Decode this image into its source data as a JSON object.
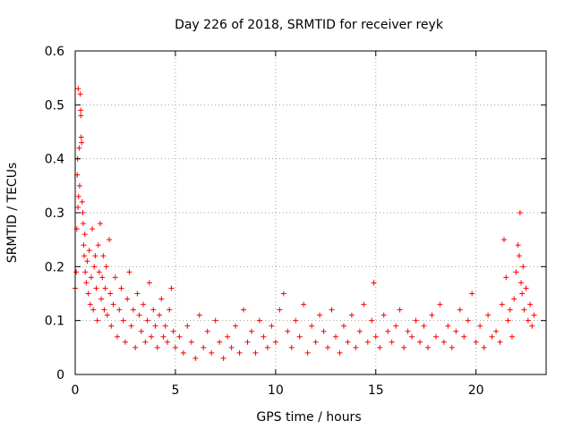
{
  "chart_data": {
    "type": "scatter",
    "title": "Day 226 of 2018, SRMTID for receiver reyk",
    "xlabel": "GPS time / hours",
    "ylabel": "SRMTID / TECUs",
    "xlim": [
      0,
      23.5
    ],
    "ylim": [
      0,
      0.6
    ],
    "xticks": [
      0,
      5,
      10,
      15,
      20
    ],
    "xtick_labels": [
      "0",
      "5",
      "10",
      "15",
      "20"
    ],
    "yticks": [
      0,
      0.1,
      0.2,
      0.3,
      0.4,
      0.5,
      0.6
    ],
    "ytick_labels": [
      "0",
      "0.1",
      "0.2",
      "0.3",
      "0.4",
      "0.5",
      "0.6"
    ],
    "grid": true,
    "marker": "plus",
    "color": "#ff0000",
    "series": [
      {
        "name": "SRMTID",
        "points": [
          [
            0.0,
            0.16
          ],
          [
            0.05,
            0.19
          ],
          [
            0.08,
            0.27
          ],
          [
            0.1,
            0.37
          ],
          [
            0.12,
            0.4
          ],
          [
            0.14,
            0.31
          ],
          [
            0.15,
            0.53
          ],
          [
            0.17,
            0.33
          ],
          [
            0.2,
            0.42
          ],
          [
            0.22,
            0.35
          ],
          [
            0.25,
            0.52
          ],
          [
            0.27,
            0.49
          ],
          [
            0.28,
            0.48
          ],
          [
            0.3,
            0.44
          ],
          [
            0.32,
            0.43
          ],
          [
            0.35,
            0.32
          ],
          [
            0.38,
            0.3
          ],
          [
            0.4,
            0.28
          ],
          [
            0.42,
            0.24
          ],
          [
            0.45,
            0.22
          ],
          [
            0.48,
            0.26
          ],
          [
            0.5,
            0.19
          ],
          [
            0.55,
            0.17
          ],
          [
            0.6,
            0.21
          ],
          [
            0.65,
            0.15
          ],
          [
            0.7,
            0.23
          ],
          [
            0.75,
            0.13
          ],
          [
            0.8,
            0.18
          ],
          [
            0.85,
            0.27
          ],
          [
            0.9,
            0.12
          ],
          [
            0.95,
            0.2
          ],
          [
            1.0,
            0.22
          ],
          [
            1.05,
            0.16
          ],
          [
            1.1,
            0.1
          ],
          [
            1.15,
            0.24
          ],
          [
            1.2,
            0.19
          ],
          [
            1.25,
            0.28
          ],
          [
            1.3,
            0.14
          ],
          [
            1.35,
            0.18
          ],
          [
            1.4,
            0.22
          ],
          [
            1.45,
            0.12
          ],
          [
            1.5,
            0.16
          ],
          [
            1.55,
            0.2
          ],
          [
            1.6,
            0.11
          ],
          [
            1.7,
            0.25
          ],
          [
            1.75,
            0.15
          ],
          [
            1.8,
            0.09
          ],
          [
            1.9,
            0.13
          ],
          [
            2.0,
            0.18
          ],
          [
            2.1,
            0.07
          ],
          [
            2.2,
            0.12
          ],
          [
            2.3,
            0.16
          ],
          [
            2.4,
            0.1
          ],
          [
            2.5,
            0.06
          ],
          [
            2.6,
            0.14
          ],
          [
            2.7,
            0.19
          ],
          [
            2.8,
            0.09
          ],
          [
            2.9,
            0.12
          ],
          [
            3.0,
            0.05
          ],
          [
            3.1,
            0.15
          ],
          [
            3.2,
            0.11
          ],
          [
            3.3,
            0.08
          ],
          [
            3.4,
            0.13
          ],
          [
            3.5,
            0.06
          ],
          [
            3.6,
            0.1
          ],
          [
            3.7,
            0.17
          ],
          [
            3.8,
            0.07
          ],
          [
            3.9,
            0.12
          ],
          [
            4.0,
            0.09
          ],
          [
            4.1,
            0.05
          ],
          [
            4.2,
            0.11
          ],
          [
            4.3,
            0.14
          ],
          [
            4.4,
            0.07
          ],
          [
            4.5,
            0.09
          ],
          [
            4.6,
            0.06
          ],
          [
            4.7,
            0.12
          ],
          [
            4.8,
            0.16
          ],
          [
            4.9,
            0.08
          ],
          [
            5.0,
            0.05
          ],
          [
            5.2,
            0.07
          ],
          [
            5.4,
            0.04
          ],
          [
            5.6,
            0.09
          ],
          [
            5.8,
            0.06
          ],
          [
            6.0,
            0.03
          ],
          [
            6.2,
            0.11
          ],
          [
            6.4,
            0.05
          ],
          [
            6.6,
            0.08
          ],
          [
            6.8,
            0.04
          ],
          [
            7.0,
            0.1
          ],
          [
            7.2,
            0.06
          ],
          [
            7.4,
            0.03
          ],
          [
            7.6,
            0.07
          ],
          [
            7.8,
            0.05
          ],
          [
            8.0,
            0.09
          ],
          [
            8.2,
            0.04
          ],
          [
            8.4,
            0.12
          ],
          [
            8.6,
            0.06
          ],
          [
            8.8,
            0.08
          ],
          [
            9.0,
            0.04
          ],
          [
            9.2,
            0.1
          ],
          [
            9.4,
            0.07
          ],
          [
            9.6,
            0.05
          ],
          [
            9.8,
            0.09
          ],
          [
            10.0,
            0.06
          ],
          [
            10.2,
            0.12
          ],
          [
            10.4,
            0.15
          ],
          [
            10.6,
            0.08
          ],
          [
            10.8,
            0.05
          ],
          [
            11.0,
            0.1
          ],
          [
            11.2,
            0.07
          ],
          [
            11.4,
            0.13
          ],
          [
            11.6,
            0.04
          ],
          [
            11.8,
            0.09
          ],
          [
            12.0,
            0.06
          ],
          [
            12.2,
            0.11
          ],
          [
            12.4,
            0.08
          ],
          [
            12.6,
            0.05
          ],
          [
            12.8,
            0.12
          ],
          [
            13.0,
            0.07
          ],
          [
            13.2,
            0.04
          ],
          [
            13.4,
            0.09
          ],
          [
            13.6,
            0.06
          ],
          [
            13.8,
            0.11
          ],
          [
            14.0,
            0.05
          ],
          [
            14.2,
            0.08
          ],
          [
            14.4,
            0.13
          ],
          [
            14.6,
            0.06
          ],
          [
            14.8,
            0.1
          ],
          [
            14.9,
            0.17
          ],
          [
            15.0,
            0.07
          ],
          [
            15.2,
            0.05
          ],
          [
            15.4,
            0.11
          ],
          [
            15.6,
            0.08
          ],
          [
            15.8,
            0.06
          ],
          [
            16.0,
            0.09
          ],
          [
            16.2,
            0.12
          ],
          [
            16.4,
            0.05
          ],
          [
            16.6,
            0.08
          ],
          [
            16.8,
            0.07
          ],
          [
            17.0,
            0.1
          ],
          [
            17.2,
            0.06
          ],
          [
            17.4,
            0.09
          ],
          [
            17.6,
            0.05
          ],
          [
            17.8,
            0.11
          ],
          [
            18.0,
            0.07
          ],
          [
            18.2,
            0.13
          ],
          [
            18.4,
            0.06
          ],
          [
            18.6,
            0.09
          ],
          [
            18.8,
            0.05
          ],
          [
            19.0,
            0.08
          ],
          [
            19.2,
            0.12
          ],
          [
            19.4,
            0.07
          ],
          [
            19.6,
            0.1
          ],
          [
            19.8,
            0.15
          ],
          [
            20.0,
            0.06
          ],
          [
            20.2,
            0.09
          ],
          [
            20.4,
            0.05
          ],
          [
            20.6,
            0.11
          ],
          [
            20.8,
            0.07
          ],
          [
            21.0,
            0.08
          ],
          [
            21.2,
            0.06
          ],
          [
            21.3,
            0.13
          ],
          [
            21.4,
            0.25
          ],
          [
            21.5,
            0.18
          ],
          [
            21.6,
            0.1
          ],
          [
            21.7,
            0.12
          ],
          [
            21.8,
            0.07
          ],
          [
            21.9,
            0.14
          ],
          [
            22.0,
            0.19
          ],
          [
            22.1,
            0.24
          ],
          [
            22.15,
            0.22
          ],
          [
            22.2,
            0.3
          ],
          [
            22.25,
            0.17
          ],
          [
            22.3,
            0.15
          ],
          [
            22.35,
            0.2
          ],
          [
            22.4,
            0.12
          ],
          [
            22.5,
            0.16
          ],
          [
            22.6,
            0.1
          ],
          [
            22.7,
            0.13
          ],
          [
            22.8,
            0.09
          ],
          [
            22.9,
            0.11
          ]
        ]
      }
    ]
  }
}
